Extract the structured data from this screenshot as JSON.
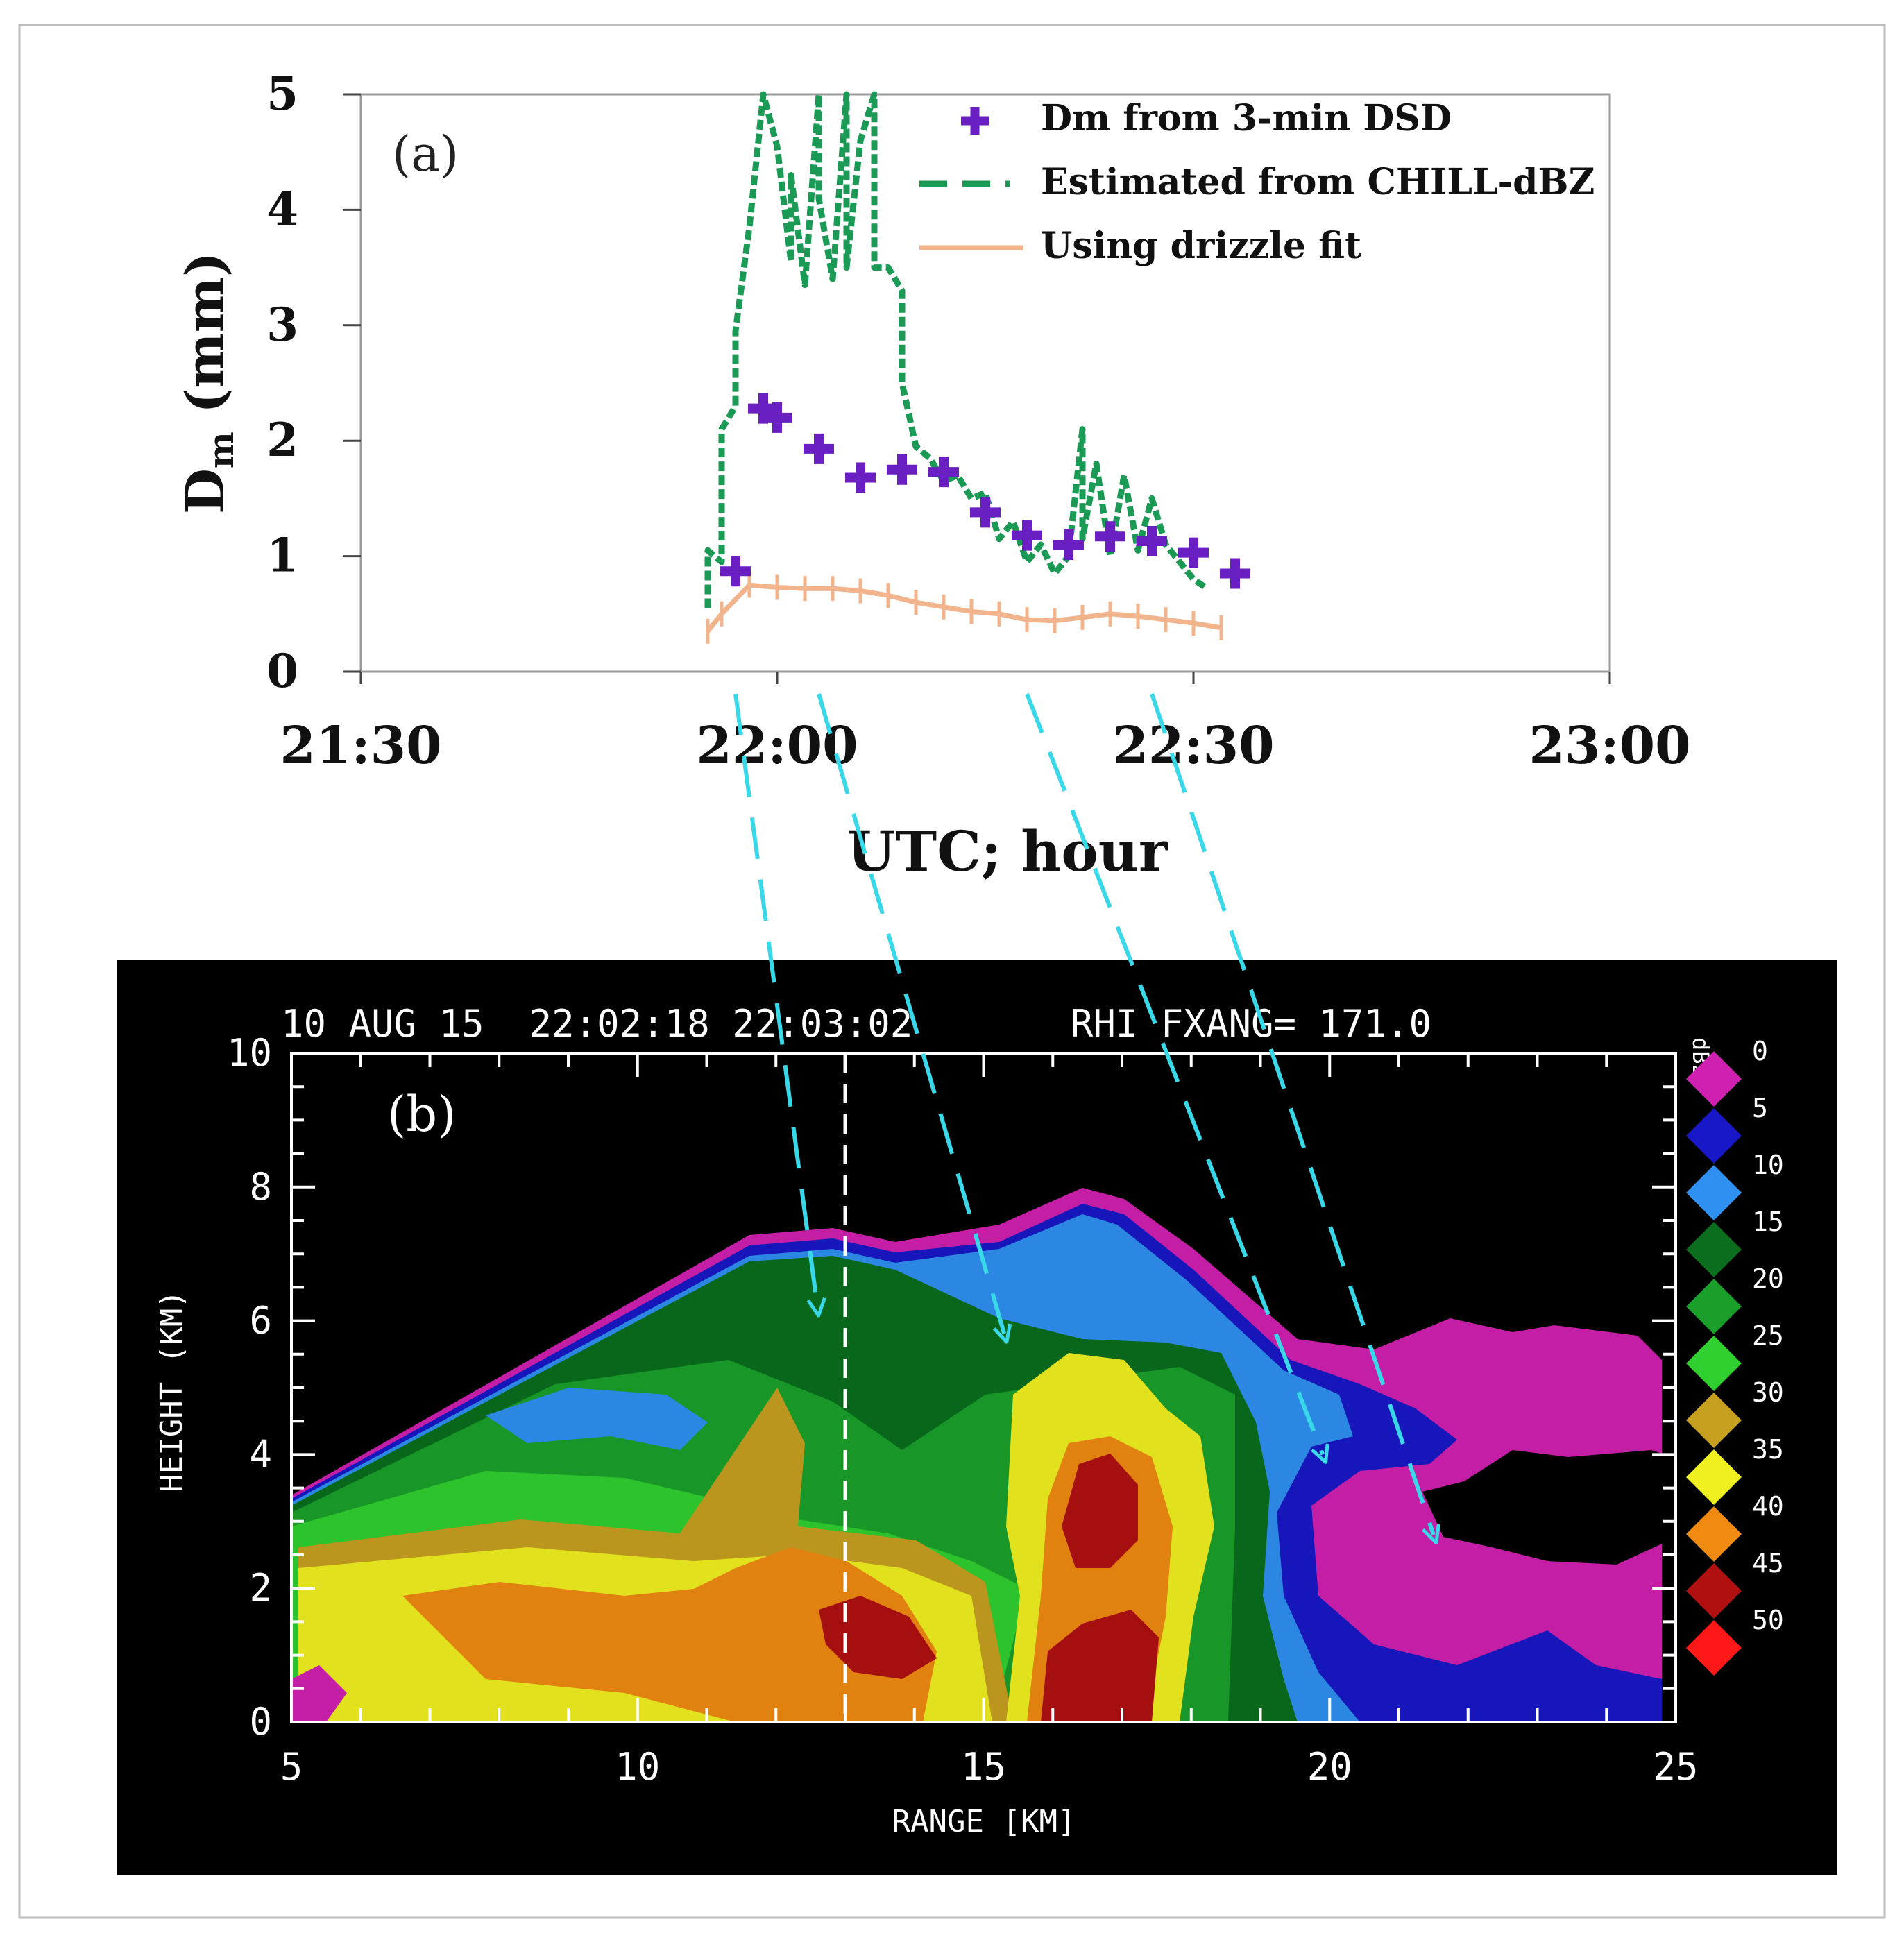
{
  "panel_a": {
    "label": "(a)",
    "ylabel_main": "D",
    "ylabel_sub": "m",
    "ylabel_unit": " (mm)",
    "xlabel": "UTC; hour",
    "legend": [
      {
        "key": "dsd",
        "label": "Dm from  3-min DSD",
        "color": "#6a1fc2"
      },
      {
        "key": "chill",
        "label": "Estimated from CHILL-dBZ",
        "color": "#1a9a55"
      },
      {
        "key": "drizzle",
        "label": "Using drizzle fit",
        "color": "#f2b48c"
      }
    ]
  },
  "panel_b": {
    "label": "(b)",
    "header": "10 AUG 15  22:02:18 22:03:02       RHI FXANG= 171.0",
    "xlabel": "RANGE [KM]",
    "ylabel": "HEIGHT (KM)",
    "colorbar_unit": "dBZ",
    "colorbar": [
      {
        "value": "0",
        "color": "#d020b0"
      },
      {
        "value": "5",
        "color": "#1818c8"
      },
      {
        "value": "10",
        "color": "#2e90f0"
      },
      {
        "value": "15",
        "color": "#0a6e1e"
      },
      {
        "value": "20",
        "color": "#1aa02a"
      },
      {
        "value": "25",
        "color": "#30d030"
      },
      {
        "value": "30",
        "color": "#c8a020"
      },
      {
        "value": "35",
        "color": "#f0f020"
      },
      {
        "value": "40",
        "color": "#f08a10"
      },
      {
        "value": "45",
        "color": "#b01010"
      },
      {
        "value": "50",
        "color": "#ff1818"
      }
    ]
  },
  "chart_data": [
    {
      "type": "scatter",
      "panel": "(a)",
      "xlabel": "UTC; hour",
      "ylabel": "Dm (mm)",
      "x_ticks": [
        "21:30",
        "22:00",
        "22:30",
        "23:00"
      ],
      "y_ticks": [
        "0",
        "1",
        "2",
        "3",
        "4",
        "5"
      ],
      "xlim": [
        "21:30",
        "23:00"
      ],
      "ylim": [
        0,
        5
      ],
      "legend_position": "top-right",
      "series": [
        {
          "name": "Dm from  3-min DSD",
          "style": "plus-markers",
          "color": "#6a1fc2",
          "points": [
            [
              "21:57",
              0.87
            ],
            [
              "21:59",
              2.28
            ],
            [
              "22:00",
              2.2
            ],
            [
              "22:03",
              1.93
            ],
            [
              "22:06",
              1.68
            ],
            [
              "22:09",
              1.75
            ],
            [
              "22:12",
              1.73
            ],
            [
              "22:15",
              1.38
            ],
            [
              "22:18",
              1.18
            ],
            [
              "22:21",
              1.1
            ],
            [
              "22:24",
              1.17
            ],
            [
              "22:27",
              1.13
            ],
            [
              "22:30",
              1.03
            ],
            [
              "22:33",
              0.85
            ]
          ]
        },
        {
          "name": "Estimated from CHILL-dBZ",
          "style": "dashed",
          "color": "#1a9a55",
          "points": [
            [
              "21:55",
              0.55
            ],
            [
              "21:55",
              1.05
            ],
            [
              "21:56",
              0.95
            ],
            [
              "21:56",
              2.1
            ],
            [
              "21:57",
              2.3
            ],
            [
              "21:57",
              2.95
            ],
            [
              "21:58",
              3.85
            ],
            [
              "21:59",
              5.0
            ],
            [
              "22:00",
              4.55
            ],
            [
              "22:01",
              3.55
            ],
            [
              "22:01",
              4.3
            ],
            [
              "22:02",
              3.35
            ],
            [
              "22:03",
              5.0
            ],
            [
              "22:03",
              4.1
            ],
            [
              "22:04",
              3.4
            ],
            [
              "22:05",
              5.0
            ],
            [
              "22:05",
              3.5
            ],
            [
              "22:06",
              4.6
            ],
            [
              "22:07",
              5.0
            ],
            [
              "22:07",
              3.5
            ],
            [
              "22:08",
              3.5
            ],
            [
              "22:09",
              3.3
            ],
            [
              "22:09",
              2.5
            ],
            [
              "22:10",
              1.95
            ],
            [
              "22:11",
              1.85
            ],
            [
              "22:12",
              1.65
            ],
            [
              "22:13",
              1.7
            ],
            [
              "22:14",
              1.5
            ],
            [
              "22:15",
              1.55
            ],
            [
              "22:16",
              1.15
            ],
            [
              "22:17",
              1.3
            ],
            [
              "22:18",
              0.95
            ],
            [
              "22:19",
              1.1
            ],
            [
              "22:20",
              0.85
            ],
            [
              "22:21",
              1.0
            ],
            [
              "22:22",
              2.1
            ],
            [
              "22:22",
              1.15
            ],
            [
              "22:23",
              1.8
            ],
            [
              "22:24",
              1.0
            ],
            [
              "22:25",
              1.7
            ],
            [
              "22:26",
              1.05
            ],
            [
              "22:27",
              1.5
            ],
            [
              "22:28",
              1.1
            ],
            [
              "22:29",
              0.95
            ],
            [
              "22:30",
              0.8
            ],
            [
              "22:31",
              0.72
            ]
          ]
        },
        {
          "name": "Using drizzle fit",
          "style": "solid",
          "color": "#f2b48c",
          "points": [
            [
              "21:55",
              0.35
            ],
            [
              "21:56",
              0.5
            ],
            [
              "21:58",
              0.75
            ],
            [
              "22:00",
              0.73
            ],
            [
              "22:02",
              0.72
            ],
            [
              "22:04",
              0.72
            ],
            [
              "22:06",
              0.7
            ],
            [
              "22:08",
              0.66
            ],
            [
              "22:10",
              0.6
            ],
            [
              "22:12",
              0.56
            ],
            [
              "22:14",
              0.52
            ],
            [
              "22:16",
              0.5
            ],
            [
              "22:18",
              0.45
            ],
            [
              "22:20",
              0.44
            ],
            [
              "22:22",
              0.47
            ],
            [
              "22:24",
              0.5
            ],
            [
              "22:26",
              0.48
            ],
            [
              "22:28",
              0.45
            ],
            [
              "22:30",
              0.42
            ],
            [
              "22:32",
              0.38
            ]
          ]
        }
      ]
    },
    {
      "type": "heatmap",
      "panel": "(b)",
      "title": "10 AUG 15  22:02:18 22:03:02       RHI FXANG= 171.0",
      "xlabel": "RANGE [KM]",
      "ylabel": "HEIGHT (KM)",
      "x_ticks": [
        "5",
        "10",
        "15",
        "20",
        "25"
      ],
      "y_ticks": [
        "0",
        "2",
        "4",
        "6",
        "8",
        "10"
      ],
      "xlim": [
        5,
        25
      ],
      "ylim": [
        0,
        10
      ],
      "colorbar_values": [
        0,
        5,
        10,
        15,
        20,
        25,
        30,
        35,
        40,
        45,
        50
      ],
      "marked_range_km": 13,
      "features": [
        {
          "name": "echo-top",
          "points": [
            [
              5,
              3.1
            ],
            [
              11.8,
              6.9
            ],
            [
              12.5,
              7.3
            ],
            [
              13.3,
              7.4
            ],
            [
              15,
              7.0
            ],
            [
              16,
              7.5
            ],
            [
              17,
              8.0
            ],
            [
              18,
              7.4
            ],
            [
              19,
              6.3
            ],
            [
              21,
              5.5
            ],
            [
              22.5,
              5.7
            ],
            [
              23.5,
              5.2
            ],
            [
              25,
              5.0
            ]
          ]
        },
        {
          "name": "core-cell",
          "range_km": 16.5,
          "height_km": 3.5
        }
      ],
      "arrows_from_panel_a": [
        "22:00",
        "22:06",
        "22:21",
        "22:30"
      ]
    }
  ]
}
